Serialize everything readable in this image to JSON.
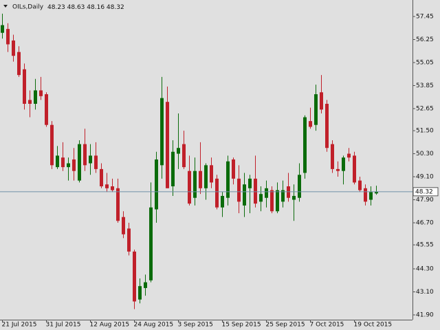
{
  "chart_data": {
    "type": "candlestick",
    "title": "OILs,Daily",
    "categories": [
      "21 Jul 2015",
      null,
      null,
      null,
      null,
      null,
      null,
      null,
      "31 Jul 2015",
      null,
      null,
      null,
      null,
      null,
      null,
      null,
      "12 Aug 2015",
      null,
      null,
      null,
      null,
      null,
      null,
      null,
      "24 Aug 2015",
      null,
      null,
      null,
      null,
      null,
      null,
      null,
      "3 Sep 2015",
      null,
      null,
      null,
      null,
      null,
      null,
      null,
      "15 Sep 2015",
      null,
      null,
      null,
      null,
      null,
      null,
      null,
      "25 Sep 2015",
      null,
      null,
      null,
      null,
      null,
      null,
      null,
      "7 Oct 2015",
      null,
      null,
      null,
      null,
      null,
      null,
      null,
      "19 Oct 2015",
      null,
      null,
      null,
      null
    ],
    "open": [
      56.6,
      56.8,
      56.2,
      55.6,
      54.7,
      53.1,
      52.9,
      53.6,
      53.4,
      51.8,
      49.6,
      50.1,
      49.6,
      50.0,
      48.9,
      50.8,
      49.8,
      50.2,
      49.5,
      48.7,
      48.6,
      48.5,
      47.0,
      46.4,
      45.2,
      42.7,
      43.3,
      43.7,
      47.4,
      49.7,
      53.0,
      48.6,
      50.3,
      50.8,
      49.4,
      48.0,
      49.4,
      48.5,
      49.7,
      49.0,
      47.5,
      48.0,
      50.0,
      49.0,
      47.6,
      48.5,
      49.0,
      47.8,
      48.0,
      48.4,
      47.3,
      47.8,
      48.6,
      47.9,
      48.0,
      49.3,
      52.0,
      51.8,
      53.5,
      52.9,
      50.8,
      49.5,
      49.4,
      50.3,
      50.2,
      48.9,
      48.5,
      47.9,
      48.23
    ],
    "high": [
      57.6,
      57.1,
      56.5,
      55.9,
      55.0,
      53.6,
      54.2,
      54.3,
      53.5,
      52.0,
      50.7,
      50.9,
      50.1,
      50.6,
      51.0,
      51.6,
      50.8,
      50.9,
      49.8,
      49.3,
      49.0,
      49.0,
      47.3,
      46.7,
      45.3,
      43.8,
      44.0,
      48.8,
      50.4,
      54.3,
      53.8,
      51.0,
      52.4,
      51.5,
      50.2,
      50.1,
      50.9,
      49.8,
      50.1,
      49.2,
      48.3,
      50.2,
      50.1,
      49.7,
      49.3,
      49.2,
      50.2,
      48.6,
      48.9,
      48.6,
      48.8,
      48.9,
      49.3,
      48.7,
      49.8,
      52.3,
      52.7,
      53.9,
      54.4,
      53.1,
      51.0,
      49.9,
      50.2,
      50.6,
      50.4,
      49.1,
      48.7,
      48.6,
      48.63
    ],
    "low": [
      56.3,
      55.6,
      55.1,
      54.3,
      52.6,
      52.2,
      52.6,
      53.1,
      51.7,
      49.5,
      49.5,
      49.4,
      48.9,
      48.9,
      48.8,
      49.4,
      49.2,
      49.3,
      48.5,
      48.3,
      48.3,
      46.7,
      45.9,
      45.0,
      42.2,
      42.5,
      42.9,
      43.6,
      46.7,
      49.0,
      48.5,
      48.1,
      49.5,
      49.5,
      47.6,
      47.6,
      48.2,
      47.9,
      48.5,
      47.4,
      47.0,
      47.6,
      48.7,
      47.2,
      47.0,
      47.2,
      47.5,
      47.3,
      47.5,
      47.2,
      47.2,
      47.5,
      47.8,
      46.8,
      47.8,
      49.0,
      51.6,
      51.5,
      52.4,
      50.4,
      49.3,
      49.1,
      48.7,
      49.9,
      48.7,
      48.3,
      47.6,
      47.6,
      48.16
    ],
    "close": [
      57.0,
      56.0,
      55.4,
      54.4,
      52.9,
      52.9,
      53.6,
      53.3,
      51.8,
      49.7,
      50.2,
      49.6,
      49.8,
      49.4,
      50.8,
      49.7,
      50.2,
      49.5,
      48.6,
      48.5,
      48.4,
      46.8,
      46.1,
      45.2,
      42.6,
      43.4,
      43.6,
      47.5,
      50.0,
      53.2,
      48.5,
      50.4,
      50.6,
      49.6,
      47.7,
      49.4,
      48.5,
      49.7,
      48.8,
      47.5,
      48.1,
      49.9,
      49.0,
      47.8,
      48.7,
      49.0,
      47.7,
      48.2,
      48.5,
      47.3,
      48.4,
      48.4,
      48.0,
      48.1,
      49.2,
      52.2,
      51.7,
      53.4,
      52.6,
      50.6,
      49.5,
      49.4,
      50.1,
      50.1,
      48.8,
      48.4,
      47.8,
      48.3,
      48.32
    ],
    "up_color": "#0b6b0b",
    "down_color": "#c0202a",
    "ylim": [
      41.65,
      58.31
    ],
    "yticks": [
      57.45,
      56.25,
      55.05,
      53.85,
      52.65,
      {
        "value": 51.5,
        "label": "51.50"
      },
      {
        "value": 50.3,
        "label": "50.30"
      },
      {
        "value": 49.1,
        "label": "49.10"
      },
      {
        "value": 47.9,
        "label": "47.90"
      },
      {
        "value": 46.7,
        "label": "46.70"
      },
      45.55,
      {
        "value": 44.3,
        "label": "44.30"
      },
      {
        "value": 43.1,
        "label": "43.10"
      },
      {
        "value": 41.9,
        "label": "41.90"
      }
    ]
  }
}
